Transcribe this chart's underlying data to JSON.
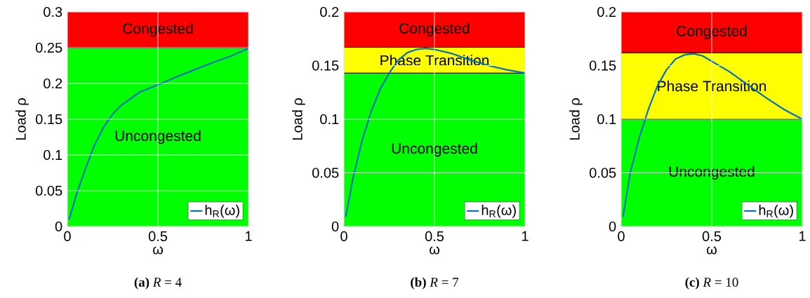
{
  "chart_data": [
    {
      "type": "line",
      "title": "**(a)** *R* = 4",
      "xlabel": "ω",
      "ylabel": "Load ρ",
      "x": [
        0.01,
        0.05,
        0.1,
        0.15,
        0.2,
        0.25,
        0.3,
        0.4,
        0.5,
        0.6,
        0.7,
        0.8,
        0.9,
        1
      ],
      "series": [
        {
          "name": "h$_{R}$(ω)",
          "color": "#0072bd",
          "values": [
            0.01,
            0.045,
            0.081,
            0.114,
            0.139,
            0.157,
            0.17,
            0.188,
            0.198,
            0.209,
            0.219,
            0.229,
            0.238,
            0.249
          ]
        }
      ],
      "xlim": [
        0,
        1
      ],
      "xticks": [
        0,
        0.5,
        1
      ],
      "ylim": [
        0,
        0.3
      ],
      "yticks": [
        0,
        0.05,
        0.1,
        0.15,
        0.2,
        0.25,
        0.3
      ],
      "bands": [
        {
          "axis": "y",
          "from": 0,
          "to": 0.25,
          "label": "Uncongested",
          "color": "#00ff00"
        },
        {
          "axis": "y",
          "from": 0.25,
          "to": 0.3,
          "label": "Congested",
          "color": "#ff0000"
        }
      ],
      "grid": true,
      "legend": "bottom right"
    },
    {
      "type": "line",
      "title": "**(b)** *R* = 7",
      "xlabel": "ω",
      "ylabel": "Load ρ",
      "x": [
        0.01,
        0.05,
        0.1,
        0.15,
        0.2,
        0.25,
        0.3,
        0.35,
        0.4,
        0.45,
        0.5,
        0.6,
        0.7,
        0.8,
        0.9,
        1
      ],
      "series": [
        {
          "name": "h$_{R}$(ω)",
          "color": "#0072bd",
          "values": [
            0.009,
            0.045,
            0.08,
            0.107,
            0.128,
            0.143,
            0.155,
            0.162,
            0.165,
            0.166,
            0.165,
            0.161,
            0.155,
            0.15,
            0.146,
            0.143
          ]
        }
      ],
      "xlim": [
        0,
        1
      ],
      "xticks": [
        0,
        0.5,
        1
      ],
      "ylim": [
        0,
        0.2
      ],
      "yticks": [
        0,
        0.05,
        0.1,
        0.15,
        0.2
      ],
      "bands": [
        {
          "axis": "y",
          "from": 0,
          "to": 0.143,
          "label": "Uncongested",
          "color": "#00ff00"
        },
        {
          "axis": "y",
          "from": 0.143,
          "to": 0.167,
          "label": "Phase Transition",
          "color": "#ffff00"
        },
        {
          "axis": "y",
          "from": 0.167,
          "to": 0.2,
          "label": "Congested",
          "color": "#ff0000"
        }
      ],
      "grid": true,
      "legend": "bottom right"
    },
    {
      "type": "line",
      "title": "**(c)** *R* = 10",
      "xlabel": "ω",
      "ylabel": "Load ρ",
      "x": [
        0.01,
        0.05,
        0.1,
        0.15,
        0.2,
        0.25,
        0.3,
        0.35,
        0.4,
        0.45,
        0.5,
        0.6,
        0.7,
        0.8,
        0.9,
        1
      ],
      "series": [
        {
          "name": "h$_{R}$(ω)",
          "color": "#0072bd",
          "values": [
            0.009,
            0.05,
            0.083,
            0.109,
            0.131,
            0.146,
            0.156,
            0.16,
            0.161,
            0.159,
            0.154,
            0.144,
            0.132,
            0.12,
            0.109,
            0.1
          ]
        }
      ],
      "xlim": [
        0,
        1
      ],
      "xticks": [
        0,
        0.5,
        1
      ],
      "ylim": [
        0,
        0.2
      ],
      "yticks": [
        0,
        0.05,
        0.1,
        0.15,
        0.2
      ],
      "bands": [
        {
          "axis": "y",
          "from": 0,
          "to": 0.1,
          "label": "Uncongested",
          "color": "#00ff00"
        },
        {
          "axis": "y",
          "from": 0.1,
          "to": 0.162,
          "label": "Phase Transition",
          "color": "#ffff00"
        },
        {
          "axis": "y",
          "from": 0.162,
          "to": 0.2,
          "label": "Congested",
          "color": "#ff0000"
        }
      ],
      "grid": true,
      "legend": "bottom right"
    }
  ]
}
